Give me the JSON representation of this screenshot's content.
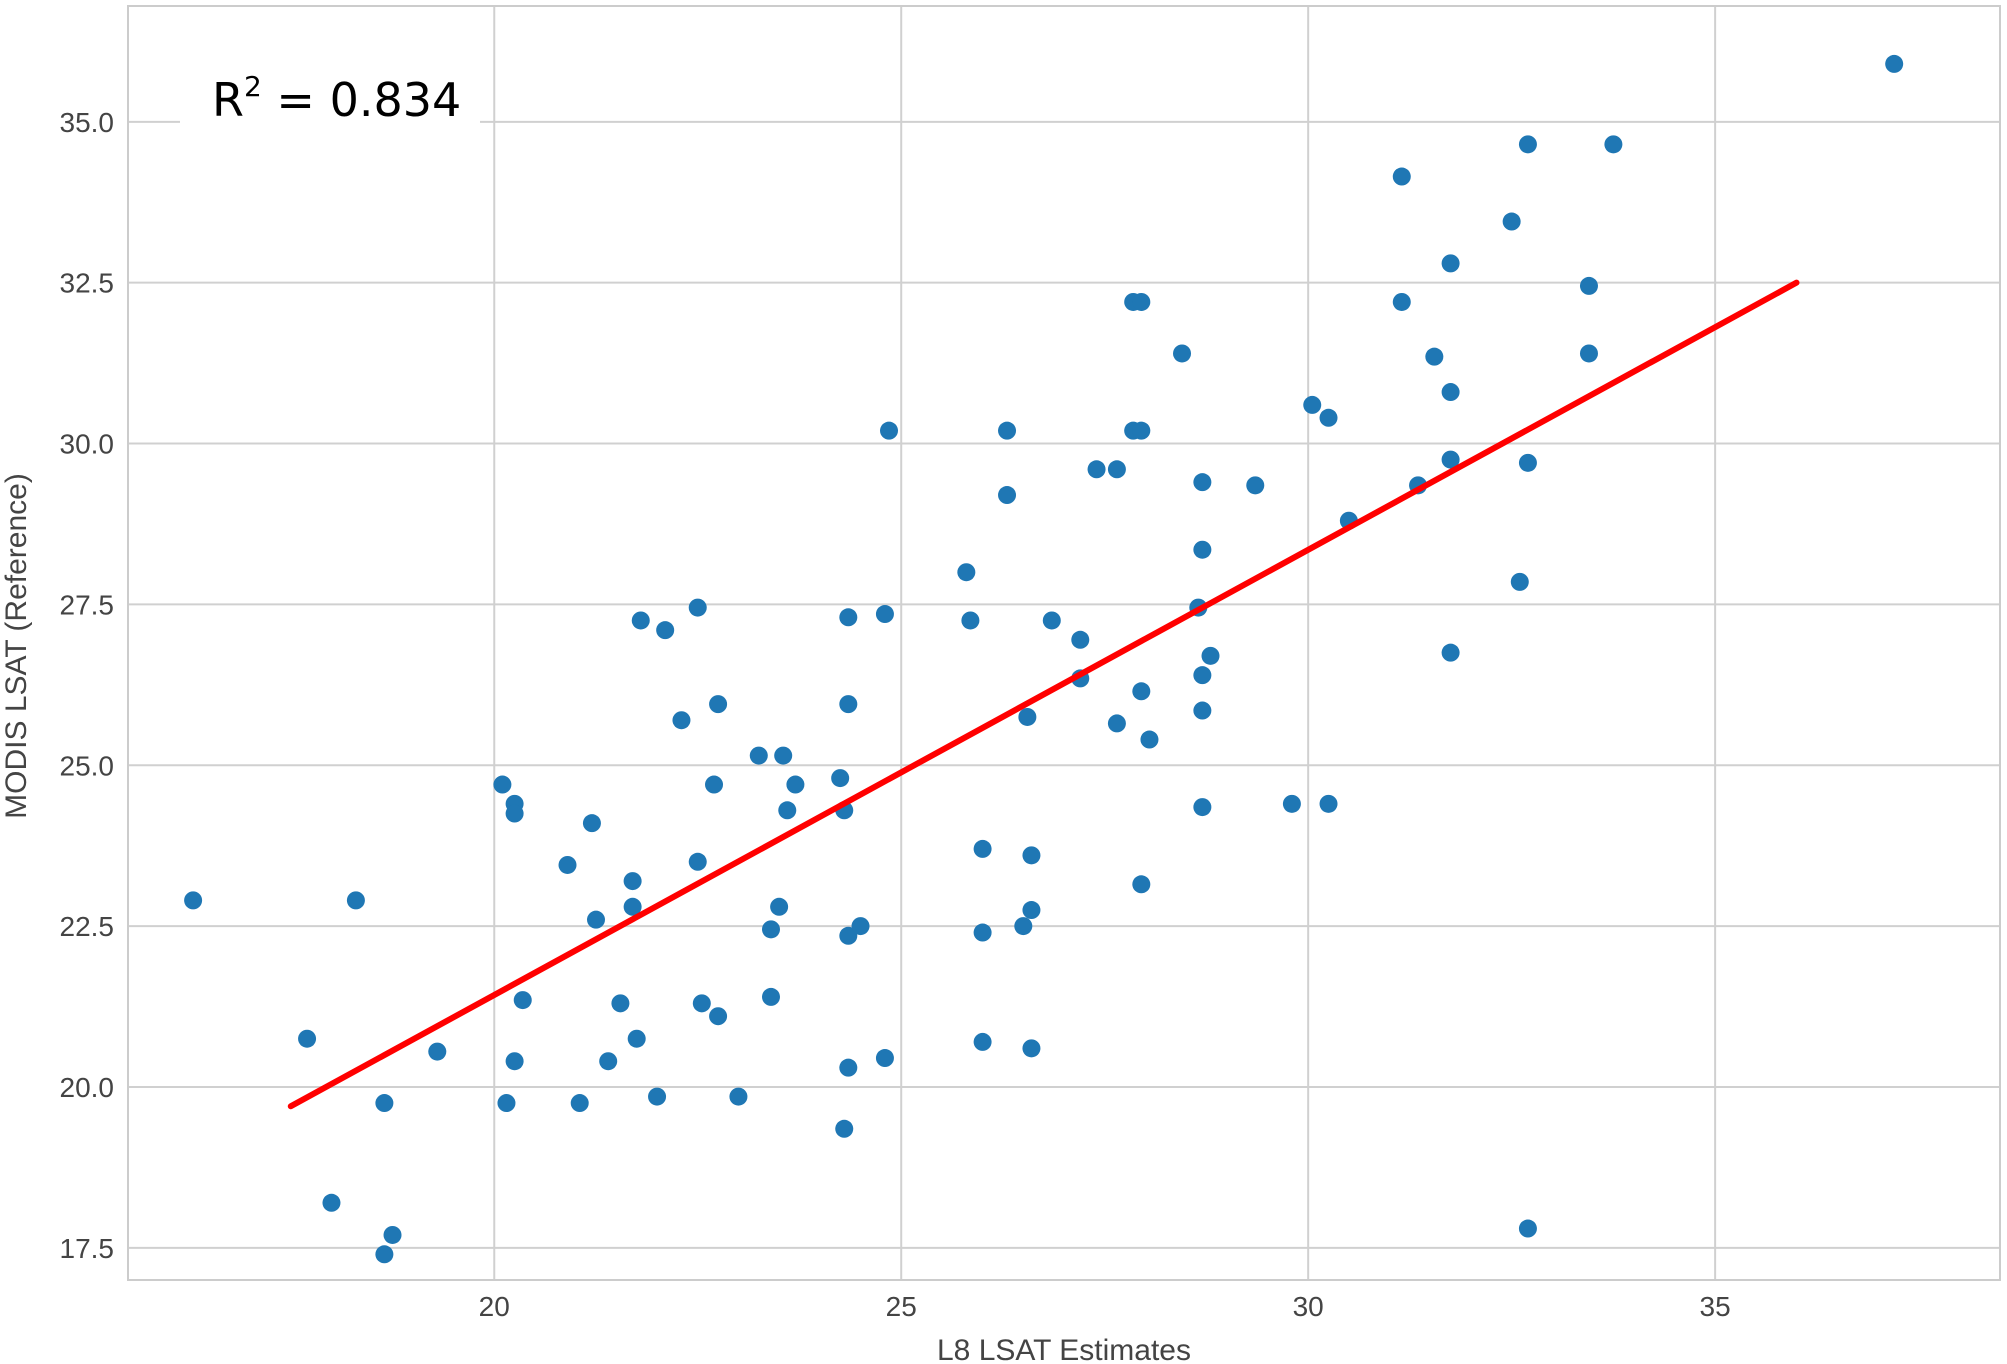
{
  "chart_data": {
    "type": "scatter",
    "xlabel": "L8 LSAT Estimates",
    "ylabel": "MODIS LSAT (Reference)",
    "xlim": [
      15.5,
      38.5
    ],
    "ylim": [
      17.0,
      36.8
    ],
    "x_ticks": [
      20,
      25,
      30,
      35
    ],
    "y_ticks": [
      17.5,
      20.0,
      22.5,
      25.0,
      27.5,
      30.0,
      32.5,
      35.0
    ],
    "x_tick_labels": [
      "20",
      "25",
      "30",
      "35"
    ],
    "y_tick_labels": [
      "17.5",
      "20.0",
      "22.5",
      "25.0",
      "27.5",
      "30.0",
      "32.5",
      "35.0"
    ],
    "grid": true,
    "annotation": {
      "base": "R",
      "sup": "2",
      "text": " = 0.834"
    },
    "point_color": "#1f77b4",
    "line_color": "#ff0000",
    "fit_line": {
      "x": [
        17.5,
        36.0
      ],
      "y": [
        19.7,
        32.5
      ]
    },
    "points": [
      {
        "x": 16.3,
        "y": 22.9
      },
      {
        "x": 17.7,
        "y": 20.75
      },
      {
        "x": 18.0,
        "y": 18.2
      },
      {
        "x": 18.3,
        "y": 22.9
      },
      {
        "x": 18.65,
        "y": 19.75
      },
      {
        "x": 18.65,
        "y": 17.4
      },
      {
        "x": 18.75,
        "y": 17.7
      },
      {
        "x": 19.3,
        "y": 20.55
      },
      {
        "x": 20.1,
        "y": 24.7
      },
      {
        "x": 20.15,
        "y": 19.75
      },
      {
        "x": 20.25,
        "y": 24.4
      },
      {
        "x": 20.25,
        "y": 24.25
      },
      {
        "x": 20.25,
        "y": 20.4
      },
      {
        "x": 20.35,
        "y": 21.35
      },
      {
        "x": 20.9,
        "y": 23.45
      },
      {
        "x": 21.05,
        "y": 19.75
      },
      {
        "x": 21.2,
        "y": 24.1
      },
      {
        "x": 21.25,
        "y": 22.6
      },
      {
        "x": 21.4,
        "y": 20.4
      },
      {
        "x": 21.55,
        "y": 21.3
      },
      {
        "x": 21.7,
        "y": 23.2
      },
      {
        "x": 21.7,
        "y": 22.8
      },
      {
        "x": 21.75,
        "y": 20.75
      },
      {
        "x": 21.8,
        "y": 27.25
      },
      {
        "x": 22.0,
        "y": 19.85
      },
      {
        "x": 22.1,
        "y": 27.1
      },
      {
        "x": 22.3,
        "y": 25.7
      },
      {
        "x": 22.5,
        "y": 27.45
      },
      {
        "x": 22.5,
        "y": 23.5
      },
      {
        "x": 22.55,
        "y": 21.3
      },
      {
        "x": 22.7,
        "y": 24.7
      },
      {
        "x": 22.75,
        "y": 25.95
      },
      {
        "x": 22.75,
        "y": 21.1
      },
      {
        "x": 23.0,
        "y": 19.85
      },
      {
        "x": 23.25,
        "y": 25.15
      },
      {
        "x": 23.4,
        "y": 22.45
      },
      {
        "x": 23.4,
        "y": 21.4
      },
      {
        "x": 23.5,
        "y": 22.8
      },
      {
        "x": 23.55,
        "y": 25.15
      },
      {
        "x": 23.6,
        "y": 24.3
      },
      {
        "x": 23.7,
        "y": 24.7
      },
      {
        "x": 24.25,
        "y": 24.8
      },
      {
        "x": 24.3,
        "y": 24.3
      },
      {
        "x": 24.3,
        "y": 19.35
      },
      {
        "x": 24.35,
        "y": 27.3
      },
      {
        "x": 24.35,
        "y": 25.95
      },
      {
        "x": 24.35,
        "y": 22.35
      },
      {
        "x": 24.35,
        "y": 20.3
      },
      {
        "x": 24.5,
        "y": 22.5
      },
      {
        "x": 24.8,
        "y": 27.35
      },
      {
        "x": 24.8,
        "y": 20.45
      },
      {
        "x": 24.85,
        "y": 30.2
      },
      {
        "x": 25.8,
        "y": 28.0
      },
      {
        "x": 25.85,
        "y": 27.25
      },
      {
        "x": 26.0,
        "y": 23.7
      },
      {
        "x": 26.0,
        "y": 22.4
      },
      {
        "x": 26.0,
        "y": 20.7
      },
      {
        "x": 26.3,
        "y": 30.2
      },
      {
        "x": 26.3,
        "y": 29.2
      },
      {
        "x": 26.5,
        "y": 22.5
      },
      {
        "x": 26.55,
        "y": 25.75
      },
      {
        "x": 26.6,
        "y": 23.6
      },
      {
        "x": 26.6,
        "y": 22.75
      },
      {
        "x": 26.6,
        "y": 20.6
      },
      {
        "x": 26.85,
        "y": 27.25
      },
      {
        "x": 27.2,
        "y": 26.95
      },
      {
        "x": 27.2,
        "y": 26.35
      },
      {
        "x": 27.4,
        "y": 29.6
      },
      {
        "x": 27.65,
        "y": 29.6
      },
      {
        "x": 27.65,
        "y": 25.65
      },
      {
        "x": 27.85,
        "y": 32.2
      },
      {
        "x": 27.85,
        "y": 30.2
      },
      {
        "x": 27.95,
        "y": 32.2
      },
      {
        "x": 27.95,
        "y": 30.2
      },
      {
        "x": 27.95,
        "y": 26.15
      },
      {
        "x": 27.95,
        "y": 23.15
      },
      {
        "x": 28.05,
        "y": 25.4
      },
      {
        "x": 28.45,
        "y": 31.4
      },
      {
        "x": 28.65,
        "y": 27.45
      },
      {
        "x": 28.7,
        "y": 29.4
      },
      {
        "x": 28.7,
        "y": 28.35
      },
      {
        "x": 28.7,
        "y": 26.4
      },
      {
        "x": 28.7,
        "y": 25.85
      },
      {
        "x": 28.7,
        "y": 24.35
      },
      {
        "x": 28.8,
        "y": 26.7
      },
      {
        "x": 29.35,
        "y": 29.35
      },
      {
        "x": 29.8,
        "y": 24.4
      },
      {
        "x": 30.05,
        "y": 30.6
      },
      {
        "x": 30.25,
        "y": 30.4
      },
      {
        "x": 30.25,
        "y": 24.4
      },
      {
        "x": 30.5,
        "y": 28.8
      },
      {
        "x": 31.15,
        "y": 34.15
      },
      {
        "x": 31.15,
        "y": 32.2
      },
      {
        "x": 31.35,
        "y": 29.35
      },
      {
        "x": 31.55,
        "y": 31.35
      },
      {
        "x": 31.75,
        "y": 32.8
      },
      {
        "x": 31.75,
        "y": 30.8
      },
      {
        "x": 31.75,
        "y": 29.75
      },
      {
        "x": 31.75,
        "y": 26.75
      },
      {
        "x": 32.5,
        "y": 33.45
      },
      {
        "x": 32.6,
        "y": 27.85
      },
      {
        "x": 32.7,
        "y": 34.65
      },
      {
        "x": 32.7,
        "y": 29.7
      },
      {
        "x": 32.7,
        "y": 17.8
      },
      {
        "x": 33.45,
        "y": 32.45
      },
      {
        "x": 33.45,
        "y": 31.4
      },
      {
        "x": 33.75,
        "y": 34.65
      },
      {
        "x": 37.2,
        "y": 35.9
      }
    ]
  }
}
